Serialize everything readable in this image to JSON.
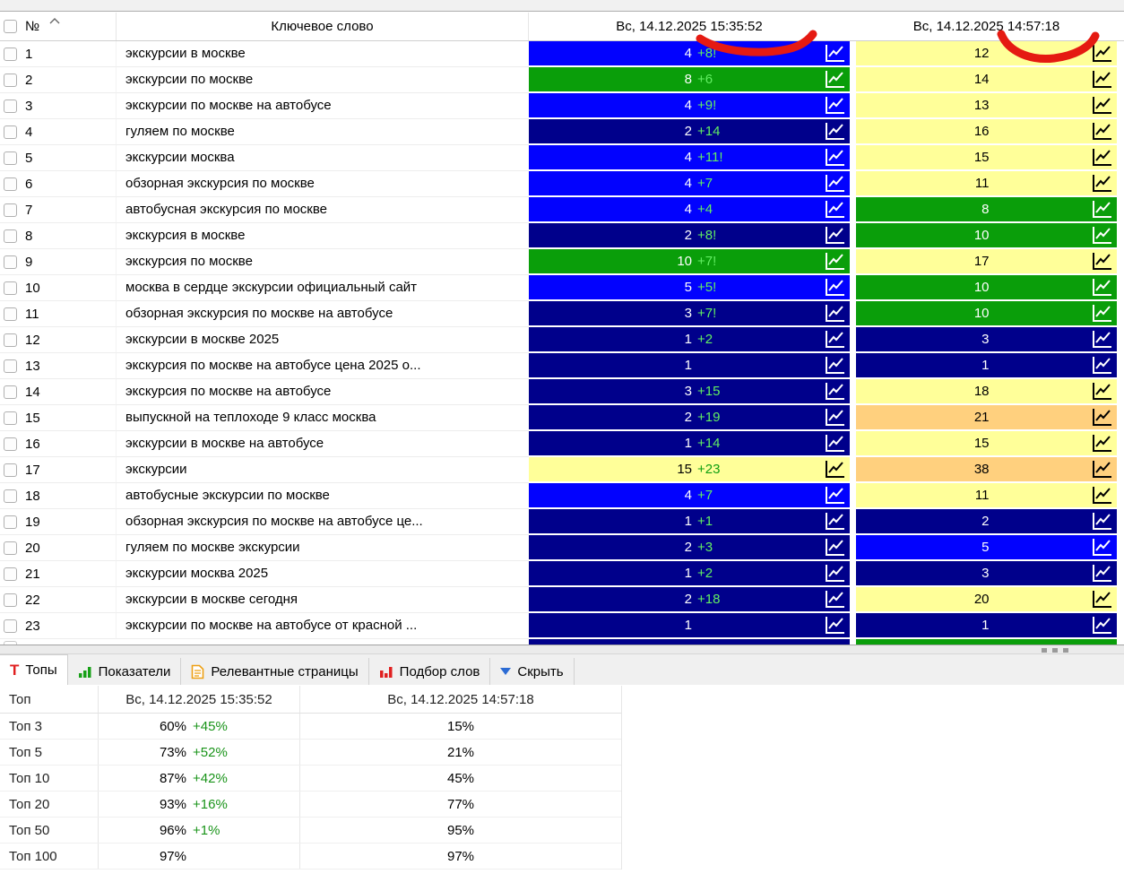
{
  "header": {
    "number_col": "№",
    "keyword_col": "Ключевое слово",
    "date_col_1": "Вс, 14.12.2025 15:35:52",
    "date_col_2": "Вс, 14.12.2025 14:57:18"
  },
  "colors": {
    "pos_blue": "#0202FE",
    "pos_navy": "#00008B",
    "pos_green": "#0A9E0A",
    "pos_yellow": "#FFFF99",
    "pos_orange": "#FFD07E",
    "change_on_dark_green": "#62EE62",
    "change_on_light_green": "#12A012",
    "summary_change_green": "#1A941A",
    "annotation_red": "#E51A12"
  },
  "rows": [
    {
      "n": "1",
      "kw": "экскурсии в москве",
      "p1": "4",
      "ch1": "+8!",
      "c1": "blue",
      "p2": "12",
      "c2": "yellow"
    },
    {
      "n": "2",
      "kw": "экскурсии по москве",
      "p1": "8",
      "ch1": "+6",
      "c1": "green",
      "p2": "14",
      "c2": "yellow"
    },
    {
      "n": "3",
      "kw": "экскурсии по москве на автобусе",
      "p1": "4",
      "ch1": "+9!",
      "c1": "blue",
      "p2": "13",
      "c2": "yellow"
    },
    {
      "n": "4",
      "kw": "гуляем по москве",
      "p1": "2",
      "ch1": "+14",
      "c1": "navy",
      "p2": "16",
      "c2": "yellow"
    },
    {
      "n": "5",
      "kw": "экскурсии москва",
      "p1": "4",
      "ch1": "+11!",
      "c1": "blue",
      "p2": "15",
      "c2": "yellow"
    },
    {
      "n": "6",
      "kw": "обзорная экскурсия по москве",
      "p1": "4",
      "ch1": "+7",
      "c1": "blue",
      "p2": "11",
      "c2": "yellow"
    },
    {
      "n": "7",
      "kw": "автобусная экскурсия по москве",
      "p1": "4",
      "ch1": "+4",
      "c1": "blue",
      "p2": "8",
      "c2": "green"
    },
    {
      "n": "8",
      "kw": "экскурсия в москве",
      "p1": "2",
      "ch1": "+8!",
      "c1": "navy",
      "p2": "10",
      "c2": "green"
    },
    {
      "n": "9",
      "kw": "экскурсия по москве",
      "p1": "10",
      "ch1": "+7!",
      "c1": "green",
      "p2": "17",
      "c2": "yellow"
    },
    {
      "n": "10",
      "kw": "москва в сердце экскурсии официальный сайт",
      "p1": "5",
      "ch1": "+5!",
      "c1": "blue",
      "p2": "10",
      "c2": "green"
    },
    {
      "n": "11",
      "kw": "обзорная экскурсия по москве на автобусе",
      "p1": "3",
      "ch1": "+7!",
      "c1": "navy",
      "p2": "10",
      "c2": "green"
    },
    {
      "n": "12",
      "kw": "экскурсии в москве 2025",
      "p1": "1",
      "ch1": "+2",
      "c1": "navy",
      "p2": "3",
      "c2": "navy"
    },
    {
      "n": "13",
      "kw": "экскурсия по москве на автобусе цена 2025 о...",
      "p1": "1",
      "ch1": "",
      "c1": "navy",
      "p2": "1",
      "c2": "navy"
    },
    {
      "n": "14",
      "kw": "экскурсия по москве на автобусе",
      "p1": "3",
      "ch1": "+15",
      "c1": "navy",
      "p2": "18",
      "c2": "yellow"
    },
    {
      "n": "15",
      "kw": "выпускной на теплоходе 9 класс москва",
      "p1": "2",
      "ch1": "+19",
      "c1": "navy",
      "p2": "21",
      "c2": "orange"
    },
    {
      "n": "16",
      "kw": "экскурсии в москве на автобусе",
      "p1": "1",
      "ch1": "+14",
      "c1": "navy",
      "p2": "15",
      "c2": "yellow"
    },
    {
      "n": "17",
      "kw": "экскурсии",
      "p1": "15",
      "ch1": "+23",
      "c1": "yellow",
      "p2": "38",
      "c2": "orange"
    },
    {
      "n": "18",
      "kw": "автобусные экскурсии по москве",
      "p1": "4",
      "ch1": "+7",
      "c1": "blue",
      "p2": "11",
      "c2": "yellow"
    },
    {
      "n": "19",
      "kw": "обзорная экскурсия по москве на автобусе це...",
      "p1": "1",
      "ch1": "+1",
      "c1": "navy",
      "p2": "2",
      "c2": "navy"
    },
    {
      "n": "20",
      "kw": "гуляем по москве экскурсии",
      "p1": "2",
      "ch1": "+3",
      "c1": "navy",
      "p2": "5",
      "c2": "blue"
    },
    {
      "n": "21",
      "kw": "экскурсии москва 2025",
      "p1": "1",
      "ch1": "+2",
      "c1": "navy",
      "p2": "3",
      "c2": "navy"
    },
    {
      "n": "22",
      "kw": "экскурсии в москве сегодня",
      "p1": "2",
      "ch1": "+18",
      "c1": "navy",
      "p2": "20",
      "c2": "yellow"
    },
    {
      "n": "23",
      "kw": "экскурсии по москве на автобусе от красной ...",
      "p1": "1",
      "ch1": "",
      "c1": "navy",
      "p2": "1",
      "c2": "navy"
    }
  ],
  "partial_row": {
    "c1": "navy",
    "c2": "green"
  },
  "tabs": [
    {
      "label": "Топы",
      "icon": "tops",
      "icon_name": "tops-t-icon",
      "active": true
    },
    {
      "label": "Показатели",
      "icon": "metrics",
      "icon_name": "green-bar-chart-icon",
      "active": false
    },
    {
      "label": "Релевантные страницы",
      "icon": "pages",
      "icon_name": "document-icon",
      "active": false
    },
    {
      "label": "Подбор слов",
      "icon": "words",
      "icon_name": "red-bar-chart-icon",
      "active": false
    },
    {
      "label": "Скрыть",
      "icon": "hide",
      "icon_name": "triangle-down-icon",
      "active": false
    }
  ],
  "summary": {
    "col_label": "Топ",
    "date_col_1": "Вс, 14.12.2025 15:35:52",
    "date_col_2": "Вс, 14.12.2025 14:57:18",
    "rows": [
      {
        "label": "Топ 3",
        "value": "60%",
        "change": "+45%",
        "prev": "15%"
      },
      {
        "label": "Топ 5",
        "value": "73%",
        "change": "+52%",
        "prev": "21%"
      },
      {
        "label": "Топ 10",
        "value": "87%",
        "change": "+42%",
        "prev": "45%"
      },
      {
        "label": "Топ 20",
        "value": "93%",
        "change": "+16%",
        "prev": "77%"
      },
      {
        "label": "Топ 50",
        "value": "96%",
        "change": "+1%",
        "prev": "95%"
      },
      {
        "label": "Топ 100",
        "value": "97%",
        "change": "",
        "prev": "97%"
      }
    ]
  }
}
